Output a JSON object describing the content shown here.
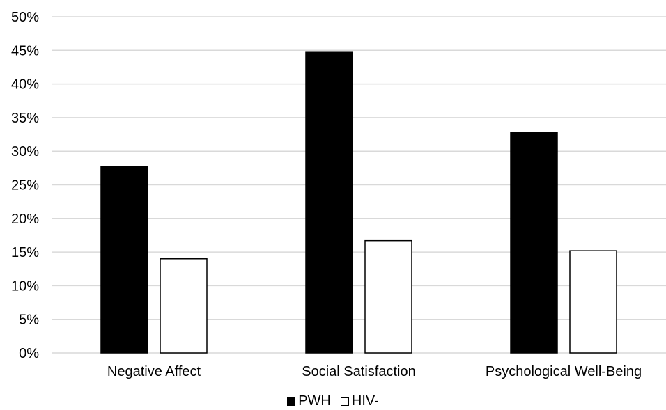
{
  "chart_data": {
    "type": "bar",
    "categories": [
      "Negative Affect",
      "Social Satisfaction",
      "Psychological Well-Being"
    ],
    "series": [
      {
        "name": "PWH",
        "values": [
          27.7,
          44.8,
          32.8
        ],
        "color": "#000000"
      },
      {
        "name": "HIV-",
        "values": [
          14.0,
          16.7,
          15.2
        ],
        "color": "#ffffff"
      }
    ],
    "yticks": [
      "0%",
      "5%",
      "10%",
      "15%",
      "20%",
      "25%",
      "30%",
      "35%",
      "40%",
      "45%",
      "50%"
    ],
    "ylim": [
      0,
      50
    ],
    "grid": true,
    "legend_position": "bottom",
    "gridline_color": "#d9d9d9",
    "bar_outline_color": "#000000"
  }
}
